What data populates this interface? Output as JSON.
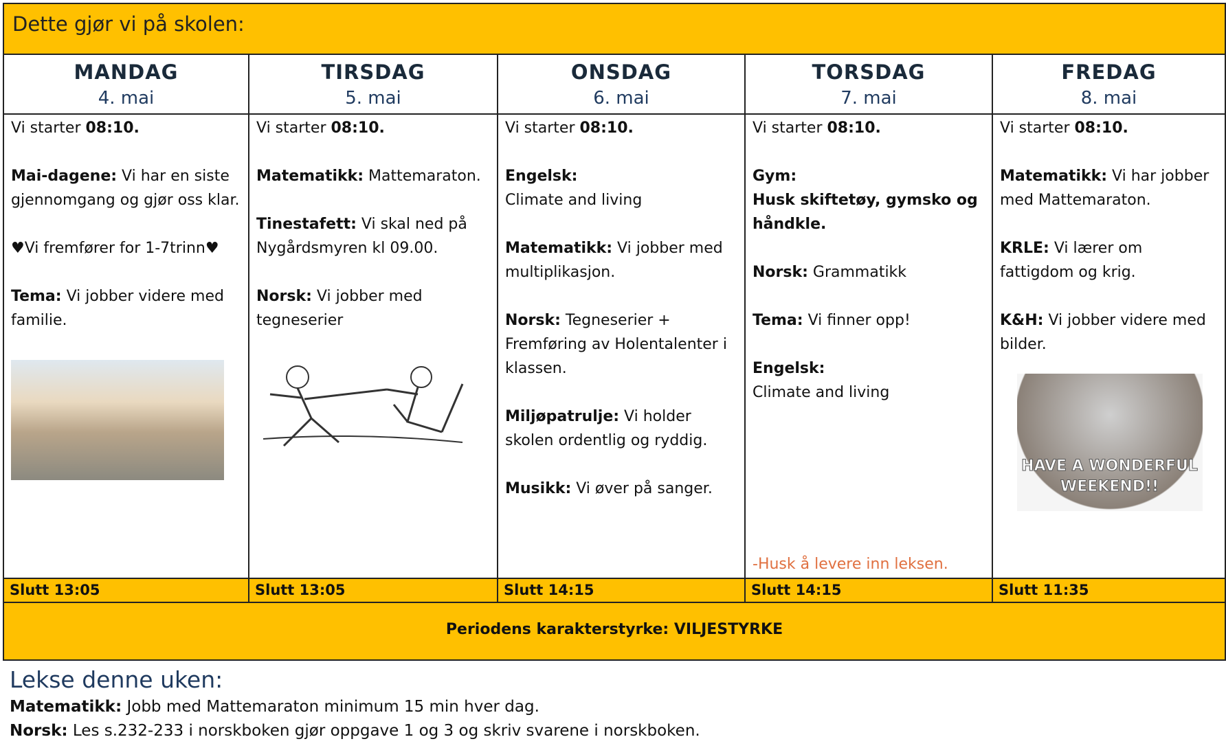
{
  "header": {
    "title": "Dette gjør vi på skolen:"
  },
  "days": [
    {
      "name": "MANDAG",
      "date": "4. mai",
      "start": {
        "text": "Vi starter ",
        "time": "08:10."
      },
      "items": [
        {
          "label": "Mai-dagene:",
          "text": " Vi har en siste gjennomgang og gjør oss klar."
        },
        {
          "text": "♥Vi fremfører for 1-7trinn♥"
        },
        {
          "label": "Tema:",
          "text": " Vi jobber videre med familie."
        }
      ],
      "end": "Slutt 13:05"
    },
    {
      "name": "TIRSDAG",
      "date": "5. mai",
      "start": {
        "text": "Vi starter ",
        "time": "08:10."
      },
      "items": [
        {
          "label": "Matematikk:",
          "text": " Mattemaraton."
        },
        {
          "label": "Tinestafett:",
          "text": " Vi skal ned på Nygårdsmyren kl 09.00."
        },
        {
          "label": "Norsk:",
          "text": " Vi jobber med tegneserier"
        }
      ],
      "end": "Slutt 13:05"
    },
    {
      "name": "ONSDAG",
      "date": "6. mai",
      "start": {
        "text": "Vi starter ",
        "time": "08:10."
      },
      "items": [
        {
          "heading": "Engelsk:",
          "text": "Climate and living"
        },
        {
          "label": "Matematikk:",
          "text": " Vi jobber med multiplikasjon."
        },
        {
          "label": "Norsk:",
          "text": " Tegneserier + Fremføring av Holentalenter i klassen."
        },
        {
          "label": "Miljøpatrulje:",
          "text": " Vi holder skolen ordentlig og ryddig."
        },
        {
          "label": "Musikk:",
          "text": " Vi øver på sanger."
        }
      ],
      "end": "Slutt 14:15"
    },
    {
      "name": "TORSDAG",
      "date": "7. mai",
      "start": {
        "text": "Vi starter ",
        "time": "08:10."
      },
      "items": [
        {
          "heading": "Gym:",
          "bold_text": "Husk skiftetøy, gymsko og håndkle."
        },
        {
          "label": "Norsk:",
          "text": " Grammatikk"
        },
        {
          "label": "Tema:",
          "text": " Vi finner opp!"
        },
        {
          "heading": "Engelsk:",
          "text": "Climate and living"
        }
      ],
      "note": "-Husk å levere inn leksen.",
      "end": "Slutt 14:15"
    },
    {
      "name": "FREDAG",
      "date": "8. mai",
      "start": {
        "text": "Vi starter ",
        "time": "08:10."
      },
      "items": [
        {
          "label": "Matematikk:",
          "text": " Vi har jobber med Mattemaraton."
        },
        {
          "label": "KRLE:",
          "text": " Vi lærer om fattigdom og krig."
        },
        {
          "label": "K&H:",
          "text": " Vi jobber videre med bilder."
        }
      ],
      "image_text": "HAVE A WONDERFUL WEEKEND!!",
      "end": "Slutt 11:35"
    }
  ],
  "motto": "Periodens karakterstyrke: VILJESTYRKE",
  "homework": {
    "title": "Lekse denne uken:",
    "items": [
      {
        "label": "Matematikk:",
        "text": " Jobb med Mattemaraton minimum 15 min hver dag."
      },
      {
        "label": "Norsk:",
        "text": " Les s.232-233 i norskboken gjør oppgave 1 og 3 og skriv svarene i norskboken."
      }
    ]
  }
}
